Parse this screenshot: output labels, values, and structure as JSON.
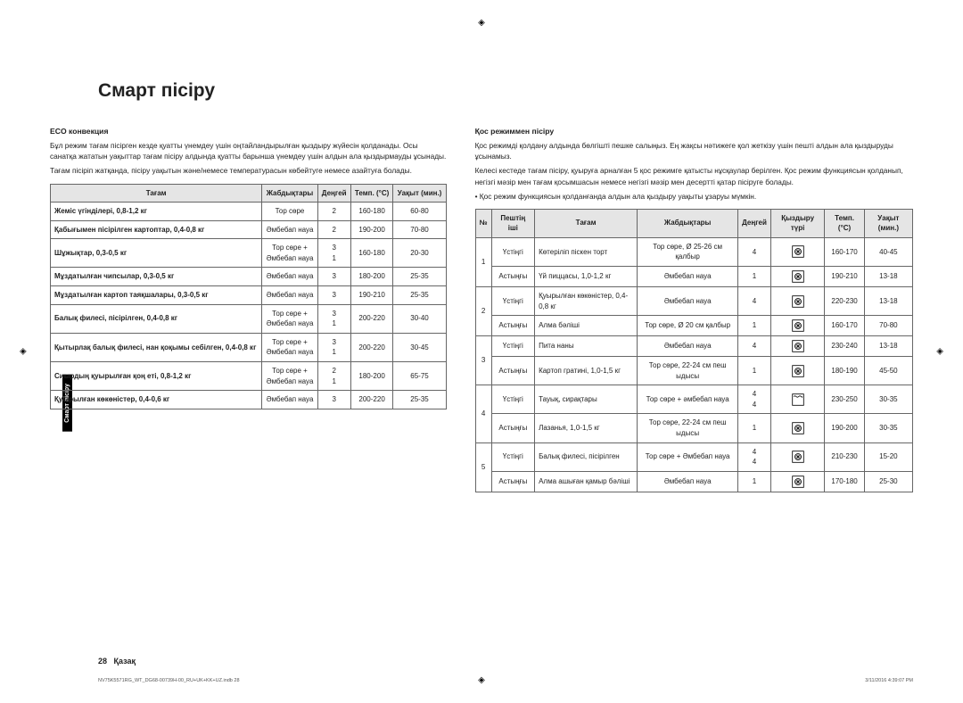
{
  "title": "Смарт пісіру",
  "sideTab": "Смарт пісіру",
  "left": {
    "heading": "ECO конвекция",
    "p1": "Бұл режим тағам пісірген кезде қуатты үнемдеу үшін оңтайландырылған қыздыру жүйесін қолданады. Осы санатқа жататын уақыттар тағам пісіру алдында қуатты барынша үнемдеу үшін алдын ала қыздырмауды ұсынады.",
    "p2": "Тағам пісіріп жатқанда, пісіру уақытын және/немесе температурасын көбейтуге немесе азайтуға болады.",
    "table": {
      "headers": [
        "Тағам",
        "Жабдықтары",
        "Деңгей",
        "Темп. (°C)",
        "Уақыт (мин.)"
      ],
      "rows": [
        {
          "food": "Жеміс үгінділері, 0,8-1,2 кг",
          "acc": "Тор сөре",
          "level": "2",
          "temp": "160-180",
          "time": "60-80"
        },
        {
          "food": "Қабығымен пісірілген картоптар, 0,4-0,8 кг",
          "acc": "Әмбебап науа",
          "level": "2",
          "temp": "190-200",
          "time": "70-80"
        },
        {
          "food": "Шұжықтар, 0,3-0,5 кг",
          "acc": "Тор сөре + Әмбебап науа",
          "level": "3\n1",
          "temp": "160-180",
          "time": "20-30"
        },
        {
          "food": "Мұздатылған чипсылар, 0,3-0,5 кг",
          "acc": "Әмбебап науа",
          "level": "3",
          "temp": "180-200",
          "time": "25-35"
        },
        {
          "food": "Мұздатылған картоп таяқшалары, 0,3-0,5 кг",
          "acc": "Әмбебап науа",
          "level": "3",
          "temp": "190-210",
          "time": "25-35"
        },
        {
          "food": "Балық филесі, пісірілген, 0,4-0,8 кг",
          "acc": "Тор сөре + Әмбебап науа",
          "level": "3\n1",
          "temp": "200-220",
          "time": "30-40"
        },
        {
          "food": "Қытырлақ балық филесі, нан қоқымы себілген, 0,4-0,8 кг",
          "acc": "Тор сөре + Әмбебап науа",
          "level": "3\n1",
          "temp": "200-220",
          "time": "30-45"
        },
        {
          "food": "Сиырдың қуырылған қоң еті, 0,8-1,2 кг",
          "acc": "Тор сөре + Әмбебап науа",
          "level": "2\n1",
          "temp": "180-200",
          "time": "65-75"
        },
        {
          "food": "Қуырылған көкөністер, 0,4-0,6 кг",
          "acc": "Әмбебап науа",
          "level": "3",
          "temp": "200-220",
          "time": "25-35"
        }
      ]
    }
  },
  "right": {
    "heading": "Қос режиммен пісіру",
    "p1": "Қос режимді қолдану алдында бөлгішті пешке салыңыз. Ең жақсы нәтижеге қол жеткізу үшін пешті алдын ала қыздыруды ұсынамыз.",
    "p2": "Келесі кестеде тағам пісіру, қуыруға арналған 5 қос режимге қатысты нұсқаулар берілген. Қос режим функциясын қолданып, негізгі мәзір мен тағам қосымшасын немесе негізгі мәзір мен десертті қатар пісіруге болады.",
    "bullet": "• Қос режим функциясын қолданғанда алдын ала қыздыру уақыты ұзаруы мүмкін.",
    "table": {
      "headers": [
        "№",
        "Пештің іші",
        "Тағам",
        "Жабдықтары",
        "Деңгей",
        "Қыздыру түрі",
        "Темп. (°C)",
        "Уақыт (мин.)"
      ],
      "rows": [
        {
          "no": "1",
          "pos": "Үстіңгі",
          "food": "Көтеріліп піскен торт",
          "acc": "Тор сөре, Ø 25-26 см қалбыр",
          "level": "4",
          "mode": "conv",
          "temp": "160-170",
          "time": "40-45"
        },
        {
          "no": "",
          "pos": "Астыңғы",
          "food": "Үй пиццасы, 1,0-1,2 кг",
          "acc": "Әмбебап науа",
          "level": "1",
          "mode": "conv",
          "temp": "190-210",
          "time": "13-18"
        },
        {
          "no": "2",
          "pos": "Үстіңгі",
          "food": "Қуырылған көкөністер, 0,4-0,8 кг",
          "acc": "Әмбебап науа",
          "level": "4",
          "mode": "conv",
          "temp": "220-230",
          "time": "13-18"
        },
        {
          "no": "",
          "pos": "Астыңғы",
          "food": "Алма бәліші",
          "acc": "Тор сөре, Ø 20 см қалбыр",
          "level": "1",
          "mode": "conv",
          "temp": "160-170",
          "time": "70-80"
        },
        {
          "no": "3",
          "pos": "Үстіңгі",
          "food": "Пита наны",
          "acc": "Әмбебап науа",
          "level": "4",
          "mode": "conv",
          "temp": "230-240",
          "time": "13-18"
        },
        {
          "no": "",
          "pos": "Астыңғы",
          "food": "Картоп гратині, 1,0-1,5 кг",
          "acc": "Тор сөре, 22-24 см пеш ыдысы",
          "level": "1",
          "mode": "conv",
          "temp": "180-190",
          "time": "45-50"
        },
        {
          "no": "4",
          "pos": "Үстіңгі",
          "food": "Тауық, сирақтары",
          "acc": "Тор сөре + әмбебап науа",
          "level": "4\n4",
          "mode": "grill",
          "temp": "230-250",
          "time": "30-35"
        },
        {
          "no": "",
          "pos": "Астыңғы",
          "food": "Лазанья, 1,0-1,5 кг",
          "acc": "Тор сөре, 22-24 см пеш ыдысы",
          "level": "1",
          "mode": "conv",
          "temp": "190-200",
          "time": "30-35"
        },
        {
          "no": "5",
          "pos": "Үстіңгі",
          "food": "Балық филесі, пісірілген",
          "acc": "Тор сөре + Әмбебап науа",
          "level": "4\n4",
          "mode": "conv",
          "temp": "210-230",
          "time": "15-20"
        },
        {
          "no": "",
          "pos": "Астыңғы",
          "food": "Алма ашыған қамыр бәліші",
          "acc": "Әмбебап науа",
          "level": "1",
          "mode": "conv",
          "temp": "170-180",
          "time": "25-30"
        }
      ]
    }
  },
  "pageNum": "28",
  "lang": "Қазақ",
  "docRef": "NV75K5571RG_WT_DG68-00739H-00_RU+UK+KK+UZ.indb   28",
  "timestamp": "3/11/2016   4:39:07 PM"
}
